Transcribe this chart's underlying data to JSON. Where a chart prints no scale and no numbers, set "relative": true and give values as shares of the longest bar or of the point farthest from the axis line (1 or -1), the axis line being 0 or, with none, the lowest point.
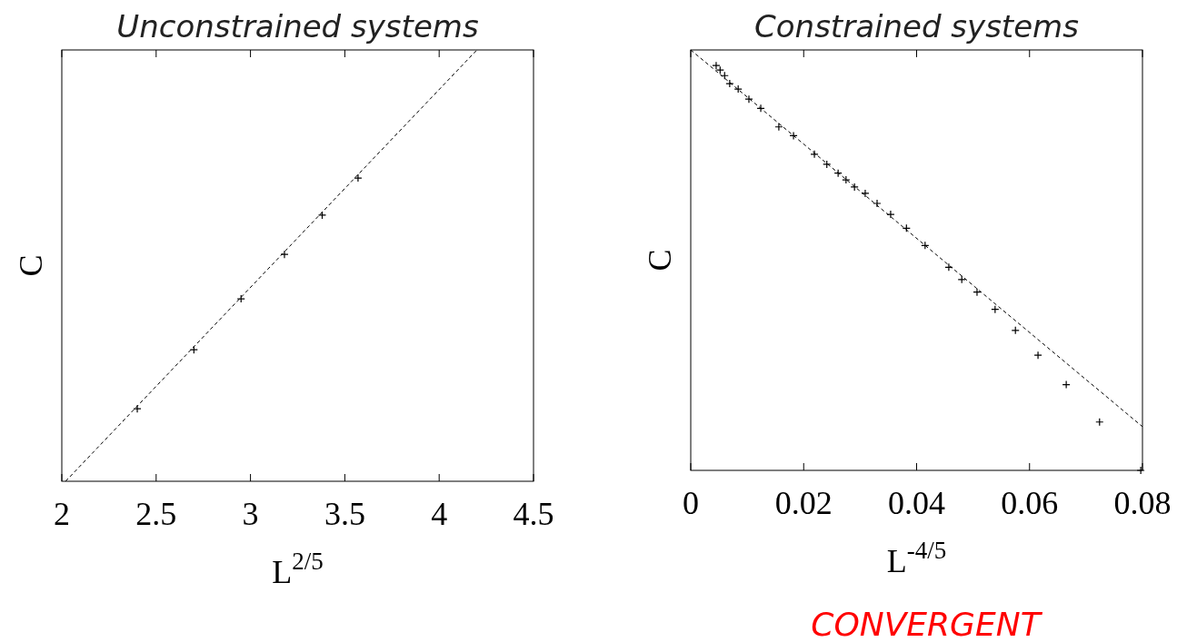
{
  "chart_data": [
    {
      "type": "scatter",
      "title": "Unconstrained systems",
      "xlabel": "L$^{2/5}$",
      "ylabel": "C",
      "relative": true,
      "xlim": [
        2,
        4.5
      ],
      "xticks": [
        2,
        2.5,
        3,
        3.5,
        4,
        4.5
      ],
      "grid": false,
      "series": [
        {
          "color": "#000000",
          "marker": "cross",
          "x": [
            2.4,
            2.7,
            2.95,
            3.18,
            3.38,
            3.57
          ],
          "values": [
            0.168,
            0.305,
            0.423,
            0.526,
            0.617,
            0.703
          ]
        },
        {
          "type": "line",
          "color": "#000000",
          "marker": "none",
          "line_style": "dashed",
          "x": [
            2.02,
            4.2
          ],
          "values": [
            0,
            1
          ]
        }
      ]
    },
    {
      "type": "scatter",
      "title": "Constrained systems",
      "xlabel": "L$^{-4/5}$",
      "ylabel": "C",
      "relative": true,
      "xlim": [
        0,
        0.08
      ],
      "xticks": [
        0,
        0.02,
        0.04,
        0.06,
        0.08
      ],
      "grid": false,
      "annotations": [
        "CONVERGENT"
      ],
      "series": [
        {
          "color": "#000000",
          "marker": "cross",
          "x": [
            0.0045,
            0.0052,
            0.006,
            0.0069,
            0.0084,
            0.0103,
            0.0124,
            0.0156,
            0.0182,
            0.0219,
            0.0241,
            0.0261,
            0.0275,
            0.029,
            0.0309,
            0.033,
            0.0354,
            0.0382,
            0.0415,
            0.0457,
            0.048,
            0.0507,
            0.0539,
            0.0575,
            0.0615,
            0.0665,
            0.0724,
            0.0797
          ],
          "values": [
            0.963,
            0.952,
            0.939,
            0.92,
            0.907,
            0.883,
            0.861,
            0.817,
            0.796,
            0.752,
            0.728,
            0.707,
            0.691,
            0.674,
            0.659,
            0.635,
            0.609,
            0.576,
            0.535,
            0.483,
            0.454,
            0.424,
            0.383,
            0.333,
            0.274,
            0.204,
            0.115,
            0
          ]
        },
        {
          "type": "line",
          "color": "#000000",
          "marker": "none",
          "line_style": "dashed",
          "x": [
            0,
            0.08
          ],
          "values": [
            1,
            0.104
          ]
        }
      ]
    }
  ]
}
